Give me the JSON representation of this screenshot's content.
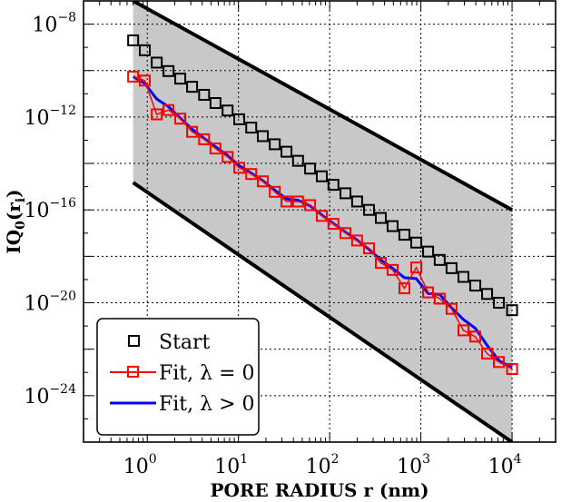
{
  "chart_data": {
    "type": "line",
    "xlabel": "PORE RADIUS r (nm)",
    "ylabel": "IQ0(ri)",
    "ylabel_parts": {
      "main": "IQ",
      "sub0": "0",
      "open": "(r",
      "sub1": "i",
      "close": ")"
    },
    "xscale": "log",
    "yscale": "log",
    "xlim": [
      0.2,
      30000
    ],
    "ylim": [
      1e-26,
      1e-07
    ],
    "grid": true,
    "legend_position": "bottom-left",
    "x_ticks": [
      {
        "base": "10",
        "exp": "0",
        "value": 1
      },
      {
        "base": "10",
        "exp": "1",
        "value": 10
      },
      {
        "base": "10",
        "exp": "2",
        "value": 100
      },
      {
        "base": "10",
        "exp": "3",
        "value": 1000
      },
      {
        "base": "10",
        "exp": "4",
        "value": 10000
      }
    ],
    "y_ticks": [
      {
        "base": "10",
        "exp": "−8",
        "value": 1e-08
      },
      {
        "base": "10",
        "exp": "−12",
        "value": 1e-12
      },
      {
        "base": "10",
        "exp": "−16",
        "value": 1e-16
      },
      {
        "base": "10",
        "exp": "−20",
        "value": 1e-20
      },
      {
        "base": "10",
        "exp": "−24",
        "value": 1e-24
      }
    ],
    "band": {
      "color": "#c8c8c8",
      "x": [
        0.7,
        10000
      ],
      "upper": [
        1e-07,
        1e-16
      ],
      "lower": [
        1.5e-15,
        1e-26
      ]
    },
    "series": [
      {
        "name": "Start",
        "style": "markers",
        "color": "#000000",
        "x": [
          0.7,
          0.94,
          1.27,
          1.71,
          2.3,
          3.1,
          4.2,
          5.6,
          7.6,
          10.2,
          13.8,
          18.5,
          25,
          33.6,
          45,
          61,
          82,
          110,
          149,
          200,
          270,
          364,
          490,
          660,
          890,
          1200,
          1610,
          2170,
          2930,
          3950,
          5320,
          7170,
          10000
        ],
        "y": [
          2e-09,
          7.5e-10,
          2.2e-10,
          9.5e-11,
          4.5e-11,
          2e-11,
          9e-12,
          4e-12,
          1.9e-12,
          8e-13,
          3.5e-13,
          1.5e-13,
          6.7e-14,
          3.2e-14,
          1.3e-14,
          6e-15,
          2.8e-15,
          1.2e-15,
          5.2e-16,
          2.3e-16,
          1e-16,
          4.5e-17,
          2e-17,
          8.5e-18,
          3.9e-18,
          1.6e-18,
          7e-19,
          3.1e-19,
          1.3e-19,
          5.5e-20,
          2.4e-20,
          1e-20,
          4.8e-21
        ]
      },
      {
        "name": "Fit, λ = 0",
        "style": "line+markers",
        "color": "#ff0000",
        "x": [
          0.7,
          0.94,
          1.27,
          1.71,
          2.3,
          3.1,
          4.2,
          5.6,
          7.6,
          10.2,
          13.8,
          18.5,
          25,
          33.6,
          45,
          61,
          82,
          110,
          149,
          200,
          270,
          364,
          490,
          660,
          890,
          1200,
          1610,
          2170,
          2930,
          3950,
          5320,
          7170,
          10000
        ],
        "y": [
          5.5e-11,
          3.7e-11,
          1.3e-12,
          2e-12,
          8.5e-13,
          2.3e-13,
          1.1e-13,
          4.4e-14,
          1.9e-14,
          6.5e-15,
          3.5e-15,
          1.7e-15,
          6e-16,
          2.3e-16,
          2.3e-16,
          1.6e-16,
          5.5e-17,
          2.5e-17,
          1e-17,
          4.8e-18,
          2.2e-18,
          5.2e-19,
          2.6e-19,
          4.2e-20,
          3.3e-19,
          2.8e-20,
          1.5e-20,
          5.5e-21,
          6.5e-22,
          3.5e-22,
          6.5e-23,
          2.8e-23,
          1.4e-23
        ]
      },
      {
        "name": "Fit, λ > 0",
        "style": "line",
        "color": "#0000ff",
        "x": [
          0.7,
          0.94,
          1.27,
          1.71,
          2.3,
          3.1,
          4.2,
          5.6,
          7.6,
          10.2,
          13.8,
          18.5,
          25,
          33.6,
          45,
          61,
          82,
          110,
          149,
          200,
          270,
          364,
          490,
          660,
          890,
          1200,
          1610,
          2170,
          2930,
          3950,
          5320,
          7170,
          10000
        ],
        "y": [
          5.5e-11,
          2.8e-11,
          6e-12,
          2.8e-12,
          9e-13,
          3e-13,
          1.2e-13,
          5.2e-14,
          2.2e-14,
          8e-15,
          3.8e-15,
          1.8e-15,
          7e-16,
          3e-16,
          2.6e-16,
          1.5e-16,
          6e-17,
          2.6e-17,
          1.1e-17,
          5e-18,
          2e-18,
          7e-19,
          3e-19,
          1.2e-19,
          1.1e-19,
          2.5e-20,
          2.3e-20,
          6e-21,
          1.9e-21,
          8e-22,
          1.5e-22,
          3.2e-23,
          1.6e-23
        ]
      }
    ],
    "legend": [
      {
        "label": "Start"
      },
      {
        "label": "Fit, λ = 0"
      },
      {
        "label": "Fit, λ > 0"
      }
    ]
  }
}
